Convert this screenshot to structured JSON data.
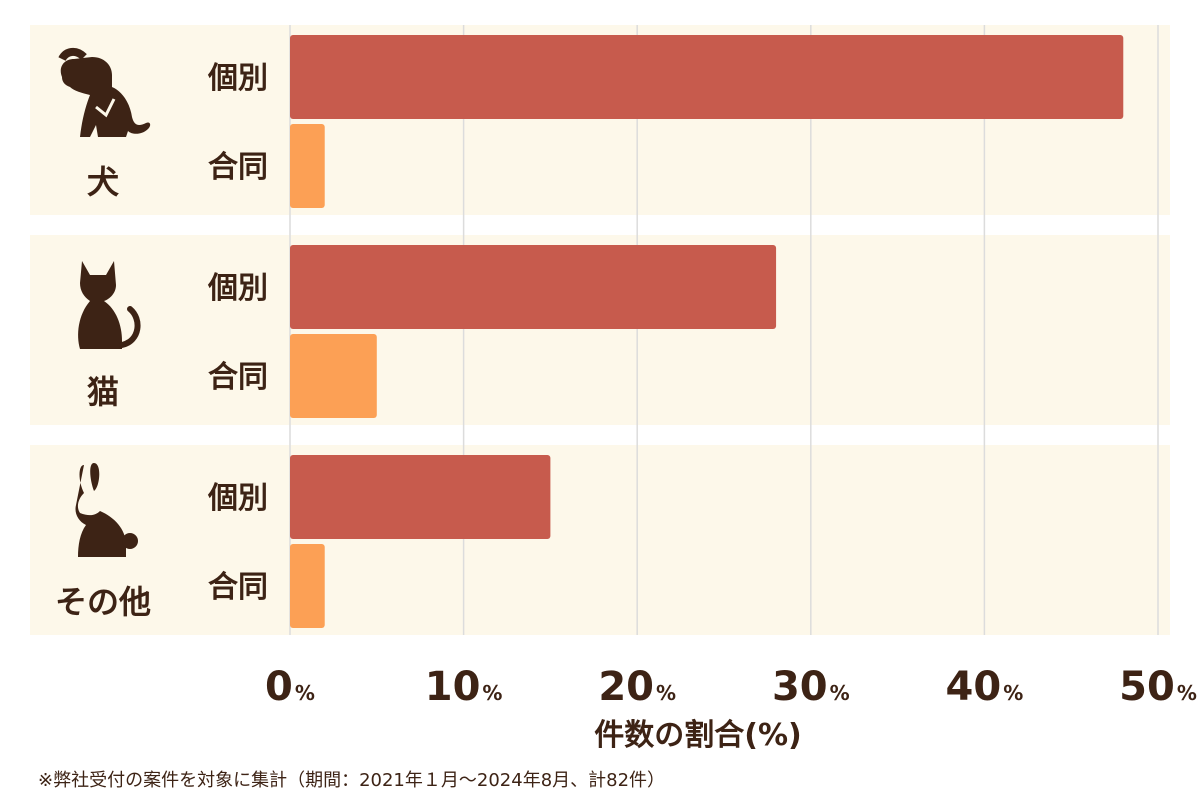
{
  "chart_data": {
    "type": "bar",
    "orientation": "horizontal",
    "groups": [
      {
        "label": "犬",
        "icon": "dog-icon",
        "bars": [
          {
            "label": "個別",
            "value": 48.0
          },
          {
            "label": "合同",
            "value": 2.0
          }
        ]
      },
      {
        "label": "猫",
        "icon": "cat-icon",
        "bars": [
          {
            "label": "個別",
            "value": 28.0
          },
          {
            "label": "合同",
            "value": 5.0
          }
        ]
      },
      {
        "label": "その他",
        "icon": "rabbit-icon",
        "bars": [
          {
            "label": "個別",
            "value": 15.0
          },
          {
            "label": "合同",
            "value": 2.0
          }
        ]
      }
    ],
    "xlim": [
      0,
      50
    ],
    "x_ticks": [
      0,
      10,
      20,
      30,
      40,
      50
    ],
    "tick_unit": "%",
    "xlabel": "件数の割合(%)",
    "grid": true,
    "colors": {
      "個別": "#c75b4d",
      "合同": "#fca055",
      "panel": "#fdf8ea",
      "text": "#3d2315",
      "grid": "#dcdcdc"
    }
  },
  "footnote": "※弊社受付の案件を対象に集計（期間：2021年１月〜2024年8月、計82件）"
}
